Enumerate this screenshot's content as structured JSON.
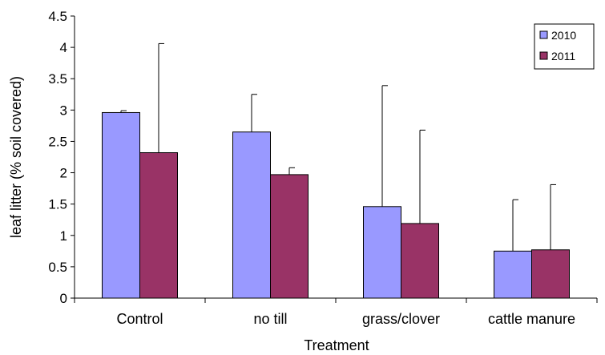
{
  "chart_data": {
    "type": "bar",
    "title": "",
    "xlabel": "Treatment",
    "ylabel": "leaf litter (% soil covered)",
    "ylim": [
      0,
      4.5
    ],
    "yticks": [
      0,
      0.5,
      1,
      1.5,
      2,
      2.5,
      3,
      3.5,
      4,
      4.5
    ],
    "ytick_labels": [
      "0",
      "0.5",
      "1",
      "1.5",
      "2",
      "2.5",
      "3",
      "3.5",
      "4",
      "4.5"
    ],
    "categories": [
      "Control",
      "no till",
      "grass/clover",
      "cattle manure"
    ],
    "series": [
      {
        "name": "2010",
        "color": "#9999ff",
        "values": [
          2.96,
          2.65,
          1.46,
          0.75
        ],
        "errors": [
          0.03,
          0.6,
          1.93,
          0.82
        ]
      },
      {
        "name": "2011",
        "color": "#993366",
        "values": [
          2.32,
          1.97,
          1.19,
          0.77
        ],
        "errors": [
          1.74,
          0.11,
          1.49,
          1.04
        ]
      }
    ],
    "error_bars": "upper",
    "legend_position": "top-right",
    "grid": false
  }
}
